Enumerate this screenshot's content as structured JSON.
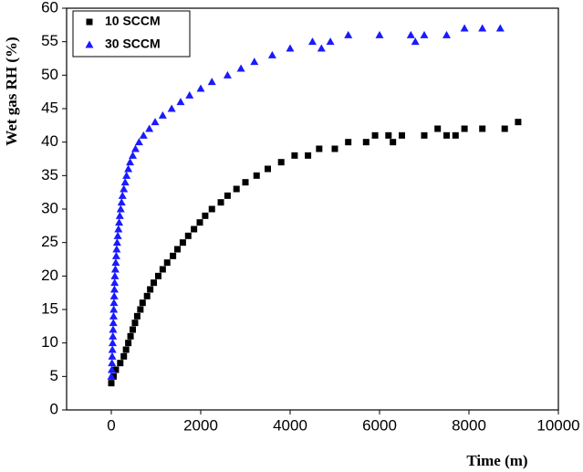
{
  "chart_data": {
    "type": "scatter",
    "y_label": "Wet gas RH (%)",
    "x_label": "Time (m)",
    "xlim": [
      -1000,
      10000
    ],
    "xticks": [
      0,
      2000,
      4000,
      6000,
      8000,
      10000
    ],
    "ylim": [
      0,
      60
    ],
    "yticks": [
      0,
      5,
      10,
      15,
      20,
      25,
      30,
      35,
      40,
      45,
      50,
      55,
      60
    ],
    "legend": "upper left",
    "series": [
      {
        "name": "10 SCCM",
        "color": "#000000",
        "marker": "square",
        "x": [
          0,
          50,
          100,
          200,
          280,
          330,
          380,
          430,
          480,
          530,
          580,
          650,
          700,
          800,
          870,
          950,
          1050,
          1150,
          1250,
          1380,
          1480,
          1600,
          1720,
          1850,
          1980,
          2100,
          2250,
          2450,
          2600,
          2800,
          3000,
          3250,
          3500,
          3800,
          4100,
          4400,
          4650,
          5000,
          5300,
          5700,
          5900,
          6200,
          6300,
          6500,
          7000,
          7300,
          7500,
          7700,
          7900,
          8300,
          8800,
          9100
        ],
        "values": [
          4,
          5,
          6,
          7,
          8,
          9,
          10,
          11,
          12,
          13,
          14,
          15,
          16,
          17,
          18,
          19,
          20,
          21,
          22,
          23,
          24,
          25,
          26,
          27,
          28,
          29,
          30,
          31,
          32,
          33,
          34,
          35,
          36,
          37,
          38,
          38,
          39,
          39,
          40,
          40,
          41,
          41,
          40,
          41,
          41,
          42,
          41,
          41,
          42,
          42,
          42,
          43
        ]
      },
      {
        "name": "30 SCCM",
        "color": "#1a1aff",
        "marker": "triangle",
        "x": [
          0,
          10,
          15,
          20,
          25,
          30,
          35,
          40,
          45,
          50,
          55,
          60,
          65,
          70,
          75,
          80,
          90,
          100,
          110,
          120,
          130,
          145,
          160,
          175,
          190,
          210,
          230,
          250,
          280,
          310,
          340,
          380,
          420,
          480,
          540,
          620,
          720,
          850,
          980,
          1150,
          1350,
          1550,
          1750,
          2000,
          2250,
          2600,
          2900,
          3200,
          3600,
          4000,
          4500,
          4700,
          4900,
          5300,
          6000,
          6700,
          6800,
          7000,
          7500,
          7900,
          8300,
          8700
        ],
        "values": [
          5,
          6,
          7,
          8,
          9,
          10,
          11,
          12,
          13,
          14,
          15,
          16,
          17,
          18,
          19,
          20,
          21,
          22,
          23,
          24,
          25,
          26,
          27,
          28,
          29,
          30,
          31,
          32,
          33,
          34,
          35,
          36,
          37,
          38,
          39,
          40,
          41,
          42,
          43,
          44,
          45,
          46,
          47,
          48,
          49,
          50,
          51,
          52,
          53,
          54,
          55,
          54,
          55,
          56,
          56,
          56,
          55,
          56,
          56,
          57,
          57,
          57
        ]
      }
    ]
  }
}
